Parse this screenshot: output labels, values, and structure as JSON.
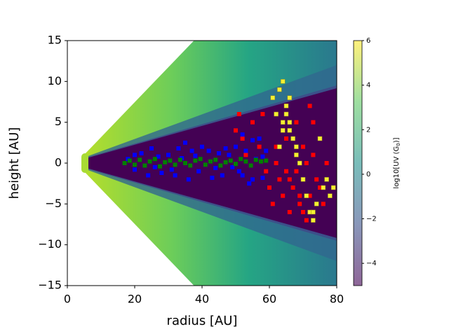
{
  "chart_data": {
    "type": "scatter",
    "xlabel": "radius [AU]",
    "ylabel": "height [AU]",
    "xlim": [
      0,
      80
    ],
    "xticks": [
      0,
      20,
      40,
      60,
      80
    ],
    "ylim": [
      -15,
      15
    ],
    "yticks": [
      {
        "value": -15,
        "label": "−15"
      },
      {
        "value": -10,
        "label": "−10"
      },
      {
        "value": -5,
        "label": "−5"
      },
      0,
      5,
      10,
      15
    ],
    "colorbar": {
      "label_parts": [
        "log10[UV (G",
        "0",
        ")]"
      ],
      "lim": [
        -5,
        6
      ],
      "ticks": [
        {
          "value": -4,
          "label": "−4"
        },
        {
          "value": -2,
          "label": "−2"
        },
        0,
        2,
        4,
        6
      ],
      "colors": [
        "#440154",
        "#3b528b",
        "#21918c",
        "#5ec962",
        "#fde725"
      ]
    },
    "series": [
      {
        "color": "#ff0000",
        "x": [
          50,
          51,
          52,
          53,
          55,
          57,
          58,
          59,
          60,
          61,
          62,
          63,
          64,
          65,
          66,
          67,
          68,
          69,
          70,
          71,
          72,
          73,
          74,
          75,
          76,
          77,
          78,
          79,
          62,
          64,
          66,
          68,
          70,
          72,
          65,
          67,
          69,
          71,
          73
        ],
        "values": [
          4,
          6,
          3,
          1,
          5,
          2,
          6,
          -1,
          -3,
          -5,
          0,
          -2,
          -4,
          3,
          -6,
          -3,
          -1,
          -5,
          2,
          -7,
          -4,
          5,
          -2,
          -3,
          -5,
          0,
          -4,
          -3,
          2,
          4,
          -2,
          5,
          -6,
          7,
          -1,
          3,
          -4,
          0,
          1
        ]
      },
      {
        "color": "#f5f032",
        "x": [
          61,
          62,
          63,
          64,
          65,
          66,
          67,
          68,
          63,
          64,
          65,
          66,
          70,
          71,
          72,
          73,
          74,
          75,
          76,
          77,
          78,
          79,
          64,
          66,
          68,
          69,
          73
        ],
        "values": [
          8,
          6,
          9,
          4,
          7,
          5,
          3,
          2,
          2,
          10,
          6,
          8,
          -2,
          -4,
          -6,
          -7,
          -5,
          3,
          -3,
          -2,
          -4,
          -3,
          5,
          4,
          1,
          0,
          -6
        ]
      },
      {
        "color": "#0000ff",
        "x": [
          18,
          20,
          22,
          24,
          25,
          27,
          28,
          30,
          32,
          33,
          35,
          36,
          37,
          39,
          40,
          42,
          43,
          45,
          46,
          48,
          50,
          51,
          52,
          53,
          54,
          55,
          56,
          57,
          58,
          59,
          20,
          26,
          31,
          34,
          38,
          44,
          47,
          49,
          52,
          55,
          58
        ],
        "values": [
          0.5,
          -0.8,
          1.2,
          -1.5,
          1.8,
          0.8,
          -1.2,
          1.0,
          -1.5,
          1.8,
          2.5,
          -2.0,
          1.5,
          -1.0,
          2.0,
          1.5,
          -1.8,
          1.2,
          -1.5,
          1.0,
          2.0,
          -1.0,
          3.5,
          1.5,
          -2.5,
          2.8,
          0.5,
          3.0,
          -1.8,
          1.5,
          1.0,
          -0.5,
          -0.8,
          0.6,
          0.9,
          -0.6,
          1.8,
          -0.5,
          -1.5,
          -2.0,
          0.8
        ]
      },
      {
        "color": "#008000",
        "x": [
          17,
          18.5,
          20,
          21.5,
          23,
          24.5,
          26,
          27.5,
          29,
          30.5,
          32,
          33.5,
          35,
          36.5,
          38,
          39.5,
          41,
          42.5,
          44,
          45.5,
          47,
          48.5,
          50,
          51.5,
          53,
          54.5,
          56,
          57.5,
          59
        ],
        "values": [
          0,
          0.3,
          -0.2,
          0.4,
          -0.3,
          0.2,
          0.5,
          -0.4,
          0.1,
          0.3,
          -0.2,
          0.4,
          0,
          -0.3,
          0.3,
          0.5,
          -0.2,
          0.2,
          0.4,
          -0.3,
          0.1,
          0.3,
          -0.1,
          0.5,
          0.2,
          -0.3,
          0.4,
          0.2,
          0.3
        ]
      }
    ]
  }
}
